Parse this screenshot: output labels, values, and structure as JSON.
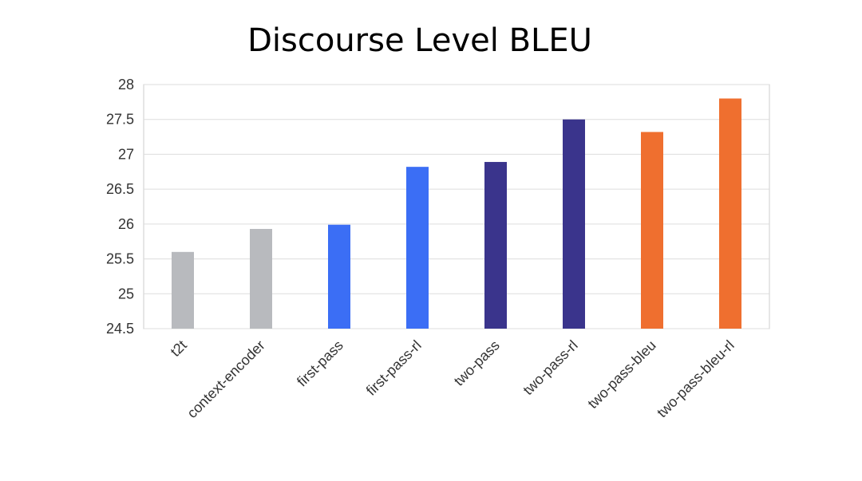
{
  "chart_data": {
    "type": "bar",
    "title": "Discourse Level BLEU",
    "xlabel": "",
    "ylabel": "",
    "ylim": [
      24.5,
      28
    ],
    "yticks": [
      "24.5",
      "25",
      "25.5",
      "26",
      "26.5",
      "27",
      "27.5",
      "28"
    ],
    "grid": true,
    "categories": [
      "t2t",
      "context-encoder",
      "first-pass",
      "first-pass-rl",
      "two-pass",
      "two-pass-rl",
      "two-pass-bleu",
      "two-pass-bleu-rl"
    ],
    "values": [
      25.6,
      25.93,
      25.99,
      26.82,
      26.89,
      27.5,
      27.32,
      27.8
    ],
    "bar_colors": [
      "#b8babe",
      "#b8babe",
      "#3b6ef5",
      "#3b6ef5",
      "#3a348c",
      "#3a348c",
      "#ef6f2f",
      "#ef6f2f"
    ],
    "colors": {
      "grid": "#dddddd",
      "axis": "#cccccc",
      "text": "#333333"
    }
  }
}
